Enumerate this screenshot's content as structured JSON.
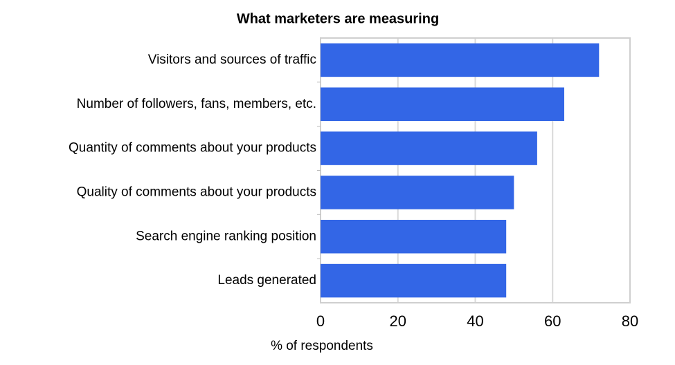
{
  "chart_data": {
    "type": "bar",
    "orientation": "horizontal",
    "title": "What marketers are measuring",
    "x_label": "% of respondents",
    "categories": [
      "Visitors and sources of traffic",
      "Number of followers, fans, members, etc.",
      "Quantity of comments about your products",
      "Quality of comments about your products",
      "Search engine ranking position",
      "Leads generated"
    ],
    "values": [
      72,
      63,
      56,
      50,
      48,
      48
    ],
    "color": "#3366e6",
    "xlim": [
      0,
      80
    ],
    "xticks": [
      0,
      20,
      40,
      60,
      80
    ],
    "grid": true
  }
}
